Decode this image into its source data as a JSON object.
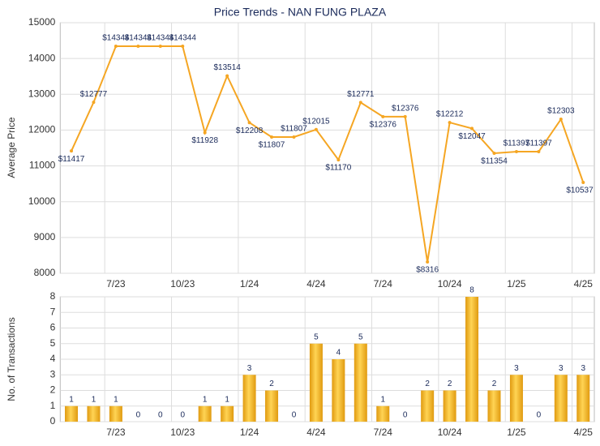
{
  "chart_data": [
    {
      "type": "line",
      "title": "Price Trends - NAN FUNG PLAZA",
      "y_label": "Average Price",
      "categories": [
        null,
        null,
        "7/23",
        null,
        null,
        "10/23",
        null,
        null,
        "1/24",
        null,
        null,
        "4/24",
        null,
        null,
        "7/24",
        null,
        null,
        "10/24",
        null,
        null,
        "1/25",
        null,
        null,
        "4/25"
      ],
      "values": [
        11417,
        12777,
        14344,
        14344,
        14344,
        14344,
        11928,
        13514,
        12208,
        11807,
        11807,
        12015,
        11170,
        12771,
        12376,
        12376,
        8316,
        12212,
        12047,
        11354,
        11397,
        11397,
        12303,
        10537
      ],
      "value_labels": [
        "$11417",
        "$12777",
        "$14344",
        "$14344",
        "$14344",
        "$14344",
        "$11928",
        "$13514",
        "$12208",
        "$11807",
        "$11807",
        "$12015",
        "$11170",
        "$12771",
        "$12376",
        "$12376",
        "$8316",
        "$12212",
        "$12047",
        "$11354",
        "$11397",
        "$11397",
        "$12303",
        "$10537"
      ],
      "color": "#f5a623",
      "ylim": [
        8000,
        15000
      ],
      "yticks": [
        8000,
        9000,
        10000,
        11000,
        12000,
        13000,
        14000,
        15000
      ],
      "grid": true
    },
    {
      "type": "bar",
      "y_label": "No. of Transactions",
      "categories": [
        null,
        null,
        "7/23",
        null,
        null,
        "10/23",
        null,
        null,
        "1/24",
        null,
        null,
        "4/24",
        null,
        null,
        "7/24",
        null,
        null,
        "10/24",
        null,
        null,
        "1/25",
        null,
        null,
        "4/25"
      ],
      "values": [
        1,
        1,
        1,
        0,
        0,
        0,
        1,
        1,
        3,
        2,
        0,
        5,
        4,
        5,
        1,
        0,
        2,
        2,
        8,
        2,
        3,
        0,
        3,
        3
      ],
      "color": "#f0b323",
      "ylim": [
        0,
        8
      ],
      "yticks": [
        0,
        1,
        2,
        3,
        4,
        5,
        6,
        7,
        8
      ],
      "grid": true
    }
  ]
}
